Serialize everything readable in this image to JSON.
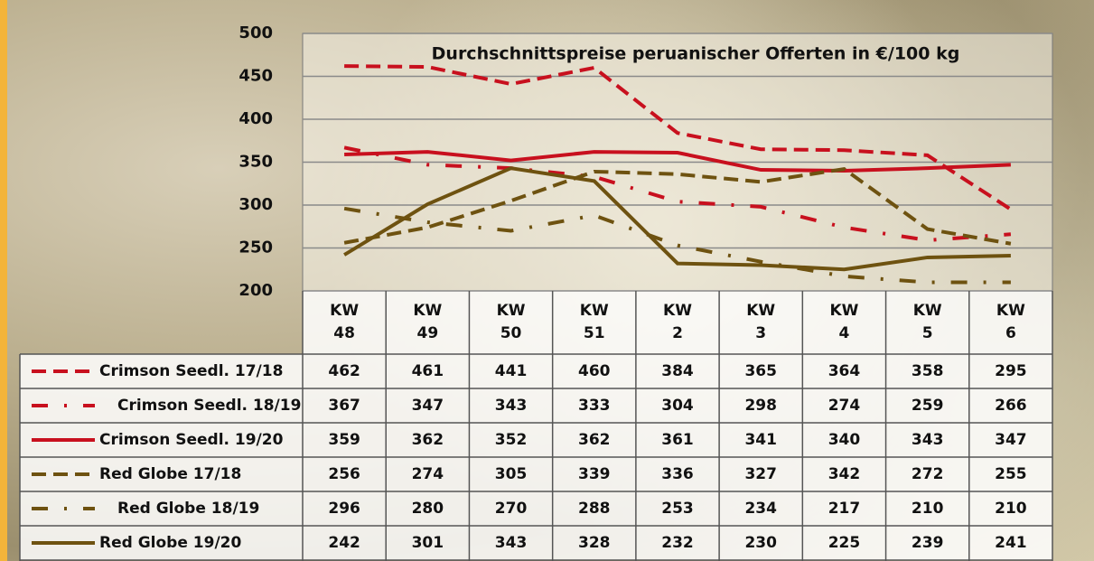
{
  "chart_data": {
    "type": "line",
    "title": "Durchschnittspreise peruanischer Offerten in €/100 kg",
    "categories": [
      "KW 48",
      "KW 49",
      "KW 50",
      "KW 51",
      "KW 2",
      "KW 3",
      "KW 4",
      "KW 5",
      "KW 6"
    ],
    "ylim": [
      200,
      500
    ],
    "yticks": [
      200,
      250,
      300,
      350,
      400,
      450,
      500
    ],
    "grid": true,
    "series": [
      {
        "name": "Crimson Seedl. 17/18",
        "color": "#c8101e",
        "style": "dashed",
        "values": [
          462,
          461,
          441,
          460,
          384,
          365,
          364,
          358,
          295
        ]
      },
      {
        "name": "Crimson Seedl. 18/19",
        "color": "#c8101e",
        "style": "dashdot",
        "values": [
          367,
          347,
          343,
          333,
          304,
          298,
          274,
          259,
          266
        ]
      },
      {
        "name": "Crimson Seedl. 19/20",
        "color": "#c8101e",
        "style": "solid",
        "values": [
          359,
          362,
          352,
          362,
          361,
          341,
          340,
          343,
          347
        ]
      },
      {
        "name": "Red Globe 17/18",
        "color": "#6e5210",
        "style": "dashed",
        "values": [
          256,
          274,
          305,
          339,
          336,
          327,
          342,
          272,
          255
        ]
      },
      {
        "name": "Red Globe 18/19",
        "color": "#6e5210",
        "style": "dashdot",
        "values": [
          296,
          280,
          270,
          288,
          253,
          234,
          217,
          210,
          210
        ]
      },
      {
        "name": "Red Globe 19/20",
        "color": "#6e5210",
        "style": "solid",
        "values": [
          242,
          301,
          343,
          328,
          232,
          230,
          225,
          239,
          241
        ]
      }
    ]
  }
}
